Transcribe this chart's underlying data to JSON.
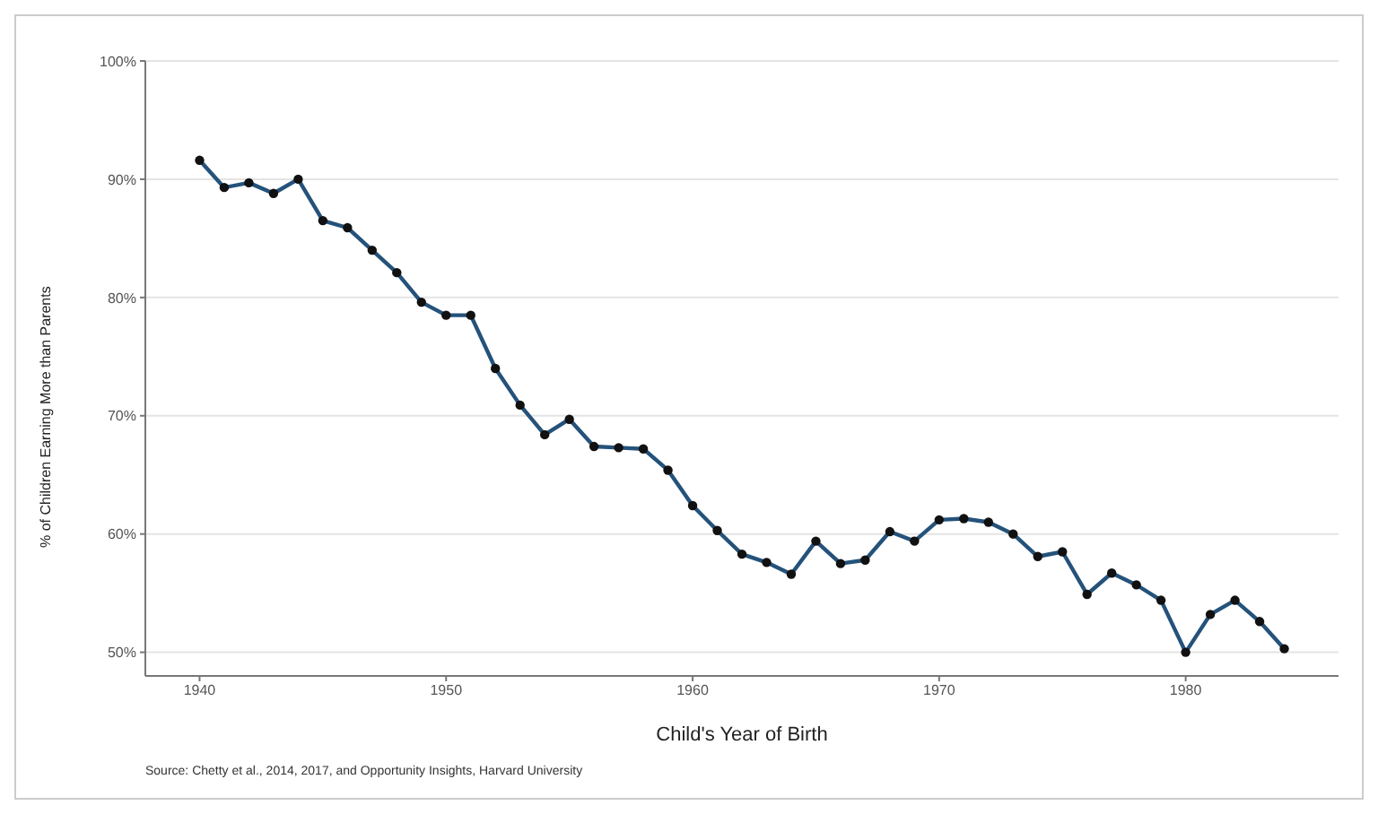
{
  "chart_data": {
    "type": "line",
    "xlabel": "Child's Year of Birth",
    "ylabel": "% of Children Earning More than Parents",
    "annotations": [
      "Source: Chetty et al., 2014, 2017, and Opportunity Insights, Harvard University"
    ],
    "x": [
      1940,
      1941,
      1942,
      1943,
      1944,
      1945,
      1946,
      1947,
      1948,
      1949,
      1950,
      1951,
      1952,
      1953,
      1954,
      1955,
      1956,
      1957,
      1958,
      1959,
      1960,
      1961,
      1962,
      1963,
      1964,
      1965,
      1966,
      1967,
      1968,
      1969,
      1970,
      1971,
      1972,
      1973,
      1974,
      1975,
      1976,
      1977,
      1978,
      1979,
      1980,
      1981,
      1982,
      1983,
      1984
    ],
    "series": [
      {
        "color": "#24527a",
        "values": [
          91.6,
          89.3,
          89.7,
          88.8,
          90.0,
          86.5,
          85.9,
          84.0,
          82.1,
          79.6,
          78.5,
          78.5,
          74.0,
          70.9,
          68.4,
          69.7,
          67.4,
          67.3,
          67.2,
          65.4,
          62.4,
          60.3,
          58.3,
          57.6,
          56.6,
          59.4,
          57.5,
          57.8,
          60.2,
          59.4,
          61.2,
          61.3,
          61.0,
          60.0,
          58.1,
          58.5,
          54.9,
          56.7,
          55.7,
          54.4,
          50.0,
          53.2,
          54.4,
          52.6,
          50.3
        ]
      }
    ],
    "xlim": [
      1937.8,
      1986.2
    ],
    "xticks": [
      1940,
      1950,
      1960,
      1970,
      1980
    ],
    "ylim": [
      48,
      100
    ],
    "yticks": [
      {
        "value": 50,
        "label": "50%"
      },
      {
        "value": 60,
        "label": "60%"
      },
      {
        "value": 70,
        "label": "70%"
      },
      {
        "value": 80,
        "label": "80%"
      },
      {
        "value": 90,
        "label": "90%"
      },
      {
        "value": 100,
        "label": "100%"
      }
    ],
    "grid": "y",
    "marker": "circle",
    "line_style": "solid"
  }
}
